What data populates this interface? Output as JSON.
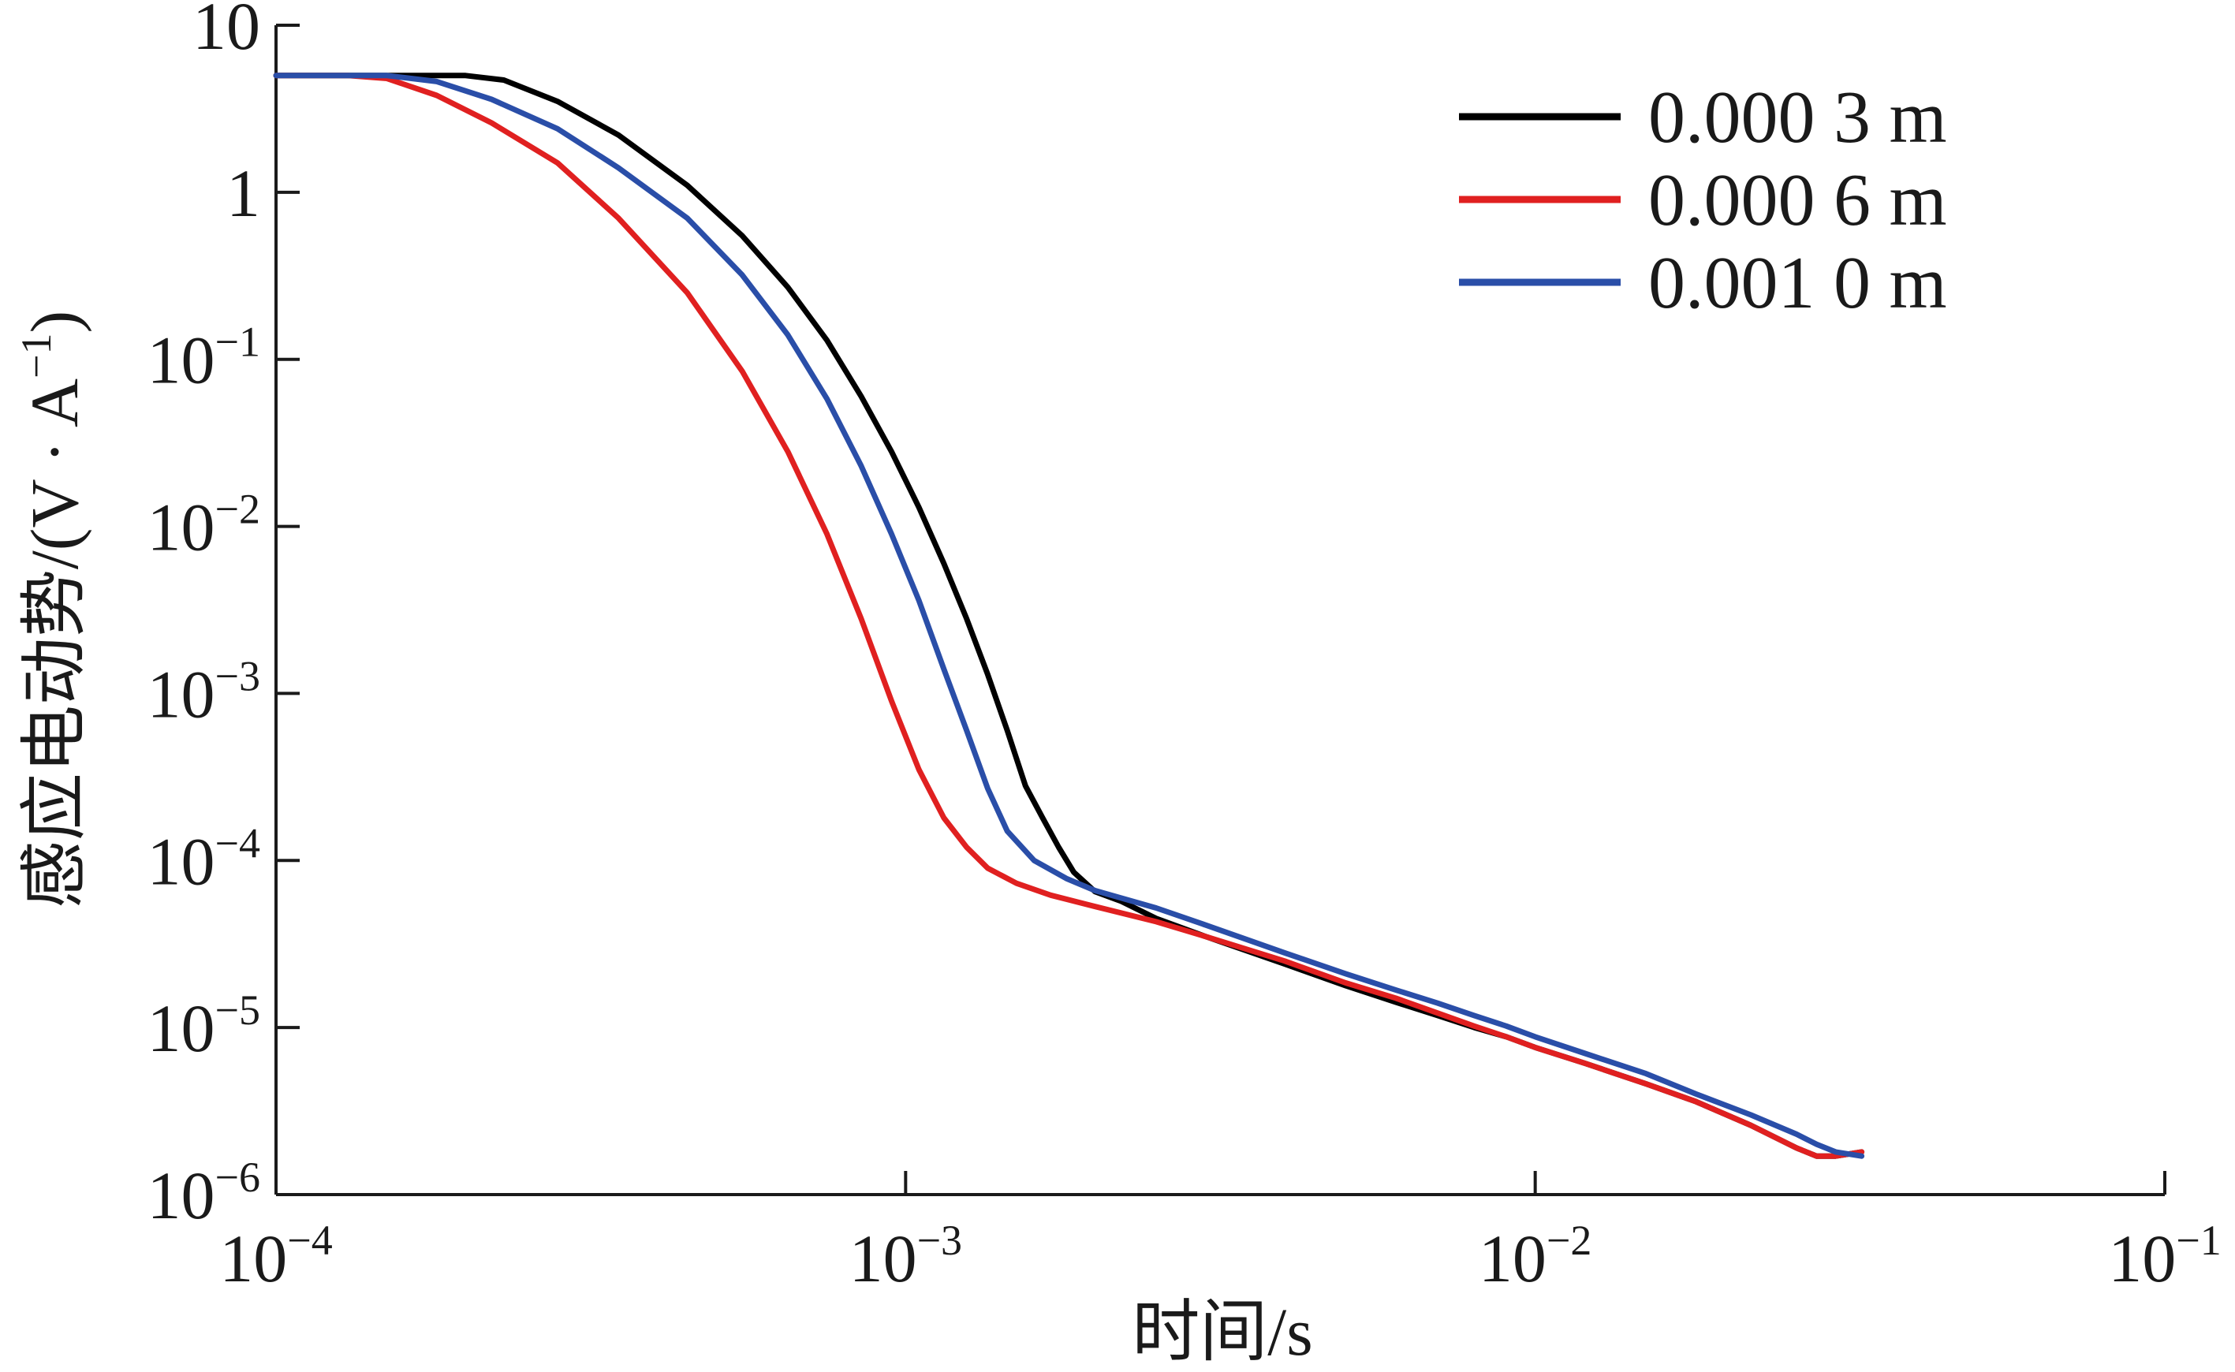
{
  "chart_data": {
    "type": "line",
    "xlabel": "时间/s",
    "ylabel": "感应电动势/(V · A",
    "ylabel_exponent": "−1",
    "ylabel_close": ")",
    "x_scale": "log",
    "y_scale": "log",
    "xlim": [
      0.0001,
      0.1
    ],
    "ylim": [
      1e-06,
      10
    ],
    "x_ticks": [
      {
        "value": 0.0001,
        "base": "10",
        "exp": "−4"
      },
      {
        "value": 0.001,
        "base": "10",
        "exp": "−3"
      },
      {
        "value": 0.01,
        "base": "10",
        "exp": "−2"
      },
      {
        "value": 0.1,
        "base": "10",
        "exp": "−1"
      }
    ],
    "y_ticks": [
      {
        "value": 10,
        "base": "10",
        "exp": ""
      },
      {
        "value": 1,
        "base": "1",
        "exp": ""
      },
      {
        "value": 0.1,
        "base": "10",
        "exp": "−1"
      },
      {
        "value": 0.01,
        "base": "10",
        "exp": "−2"
      },
      {
        "value": 0.001,
        "base": "10",
        "exp": "−3"
      },
      {
        "value": 0.0001,
        "base": "10",
        "exp": "−4"
      },
      {
        "value": 1e-05,
        "base": "10",
        "exp": "−5"
      },
      {
        "value": 1e-06,
        "base": "10",
        "exp": "−6"
      }
    ],
    "grid": false,
    "legend_position": "top-right",
    "series": [
      {
        "name": "0.000 3 m",
        "color": "#000000",
        "x": [
          0.0001,
          0.00015,
          0.0002,
          0.00023,
          0.00028,
          0.00035,
          0.00045,
          0.00055,
          0.00065,
          0.00075,
          0.00085,
          0.00095,
          0.00105,
          0.00115,
          0.00125,
          0.00135,
          0.00145,
          0.00155,
          0.00165,
          0.00175,
          0.00185,
          0.002,
          0.0022,
          0.0025,
          0.003,
          0.004,
          0.005,
          0.006,
          0.007,
          0.008,
          0.009,
          0.01,
          0.012,
          0.015,
          0.018,
          0.022,
          0.026,
          0.028,
          0.03,
          0.033
        ],
        "y": [
          5,
          5,
          5,
          4.7,
          3.5,
          2.2,
          1.1,
          0.55,
          0.27,
          0.13,
          0.06,
          0.028,
          0.013,
          0.006,
          0.0028,
          0.0013,
          0.0006,
          0.00028,
          0.00018,
          0.00012,
          8.5e-05,
          6.5e-05,
          5.7e-05,
          4.5e-05,
          3.5e-05,
          2.4e-05,
          1.78e-05,
          1.42e-05,
          1.18e-05,
          1e-05,
          8.8e-06,
          7.6e-06,
          6.1e-06,
          4.6e-06,
          3.6e-06,
          2.6e-06,
          1.9e-06,
          1.7e-06,
          1.7e-06,
          1.8e-06
        ]
      },
      {
        "name": "0.000 6 m",
        "color": "#e02020",
        "x": [
          0.0001,
          0.00013,
          0.00015,
          0.00018,
          0.00022,
          0.00028,
          0.00035,
          0.00045,
          0.00055,
          0.00065,
          0.00075,
          0.00085,
          0.00095,
          0.00105,
          0.00115,
          0.00125,
          0.00135,
          0.0015,
          0.0017,
          0.002,
          0.0025,
          0.003,
          0.004,
          0.005,
          0.006,
          0.007,
          0.008,
          0.009,
          0.01,
          0.012,
          0.015,
          0.018,
          0.022,
          0.026,
          0.028,
          0.03,
          0.033
        ],
        "y": [
          5,
          5,
          4.8,
          3.8,
          2.6,
          1.5,
          0.7,
          0.25,
          0.085,
          0.028,
          0.009,
          0.0028,
          0.0009,
          0.00035,
          0.00018,
          0.00012,
          9e-05,
          7.3e-05,
          6.2e-05,
          5.3e-05,
          4.3e-05,
          3.5e-05,
          2.5e-05,
          1.85e-05,
          1.5e-05,
          1.22e-05,
          1.02e-05,
          8.8e-06,
          7.6e-06,
          6.1e-06,
          4.6e-06,
          3.6e-06,
          2.6e-06,
          1.9e-06,
          1.7e-06,
          1.7e-06,
          1.8e-06
        ]
      },
      {
        "name": "0.001 0 m",
        "color": "#2a4ea8",
        "x": [
          0.0001,
          0.00015,
          0.00018,
          0.00022,
          0.00028,
          0.00035,
          0.00045,
          0.00055,
          0.00065,
          0.00075,
          0.00085,
          0.00095,
          0.00105,
          0.00115,
          0.00125,
          0.00135,
          0.00145,
          0.0016,
          0.0018,
          0.002,
          0.0025,
          0.003,
          0.004,
          0.005,
          0.006,
          0.007,
          0.008,
          0.009,
          0.01,
          0.012,
          0.015,
          0.018,
          0.022,
          0.026,
          0.028,
          0.03,
          0.033
        ],
        "y": [
          5,
          5,
          4.6,
          3.6,
          2.4,
          1.4,
          0.7,
          0.32,
          0.14,
          0.058,
          0.023,
          0.009,
          0.0036,
          0.0014,
          0.0006,
          0.00027,
          0.00015,
          0.0001,
          7.8e-05,
          6.6e-05,
          5.2e-05,
          4.1e-05,
          2.8e-05,
          2.1e-05,
          1.68e-05,
          1.4e-05,
          1.18e-05,
          1.02e-05,
          8.8e-06,
          7e-06,
          5.3e-06,
          4e-06,
          3e-06,
          2.3e-06,
          2e-06,
          1.8e-06,
          1.7e-06
        ]
      }
    ]
  }
}
